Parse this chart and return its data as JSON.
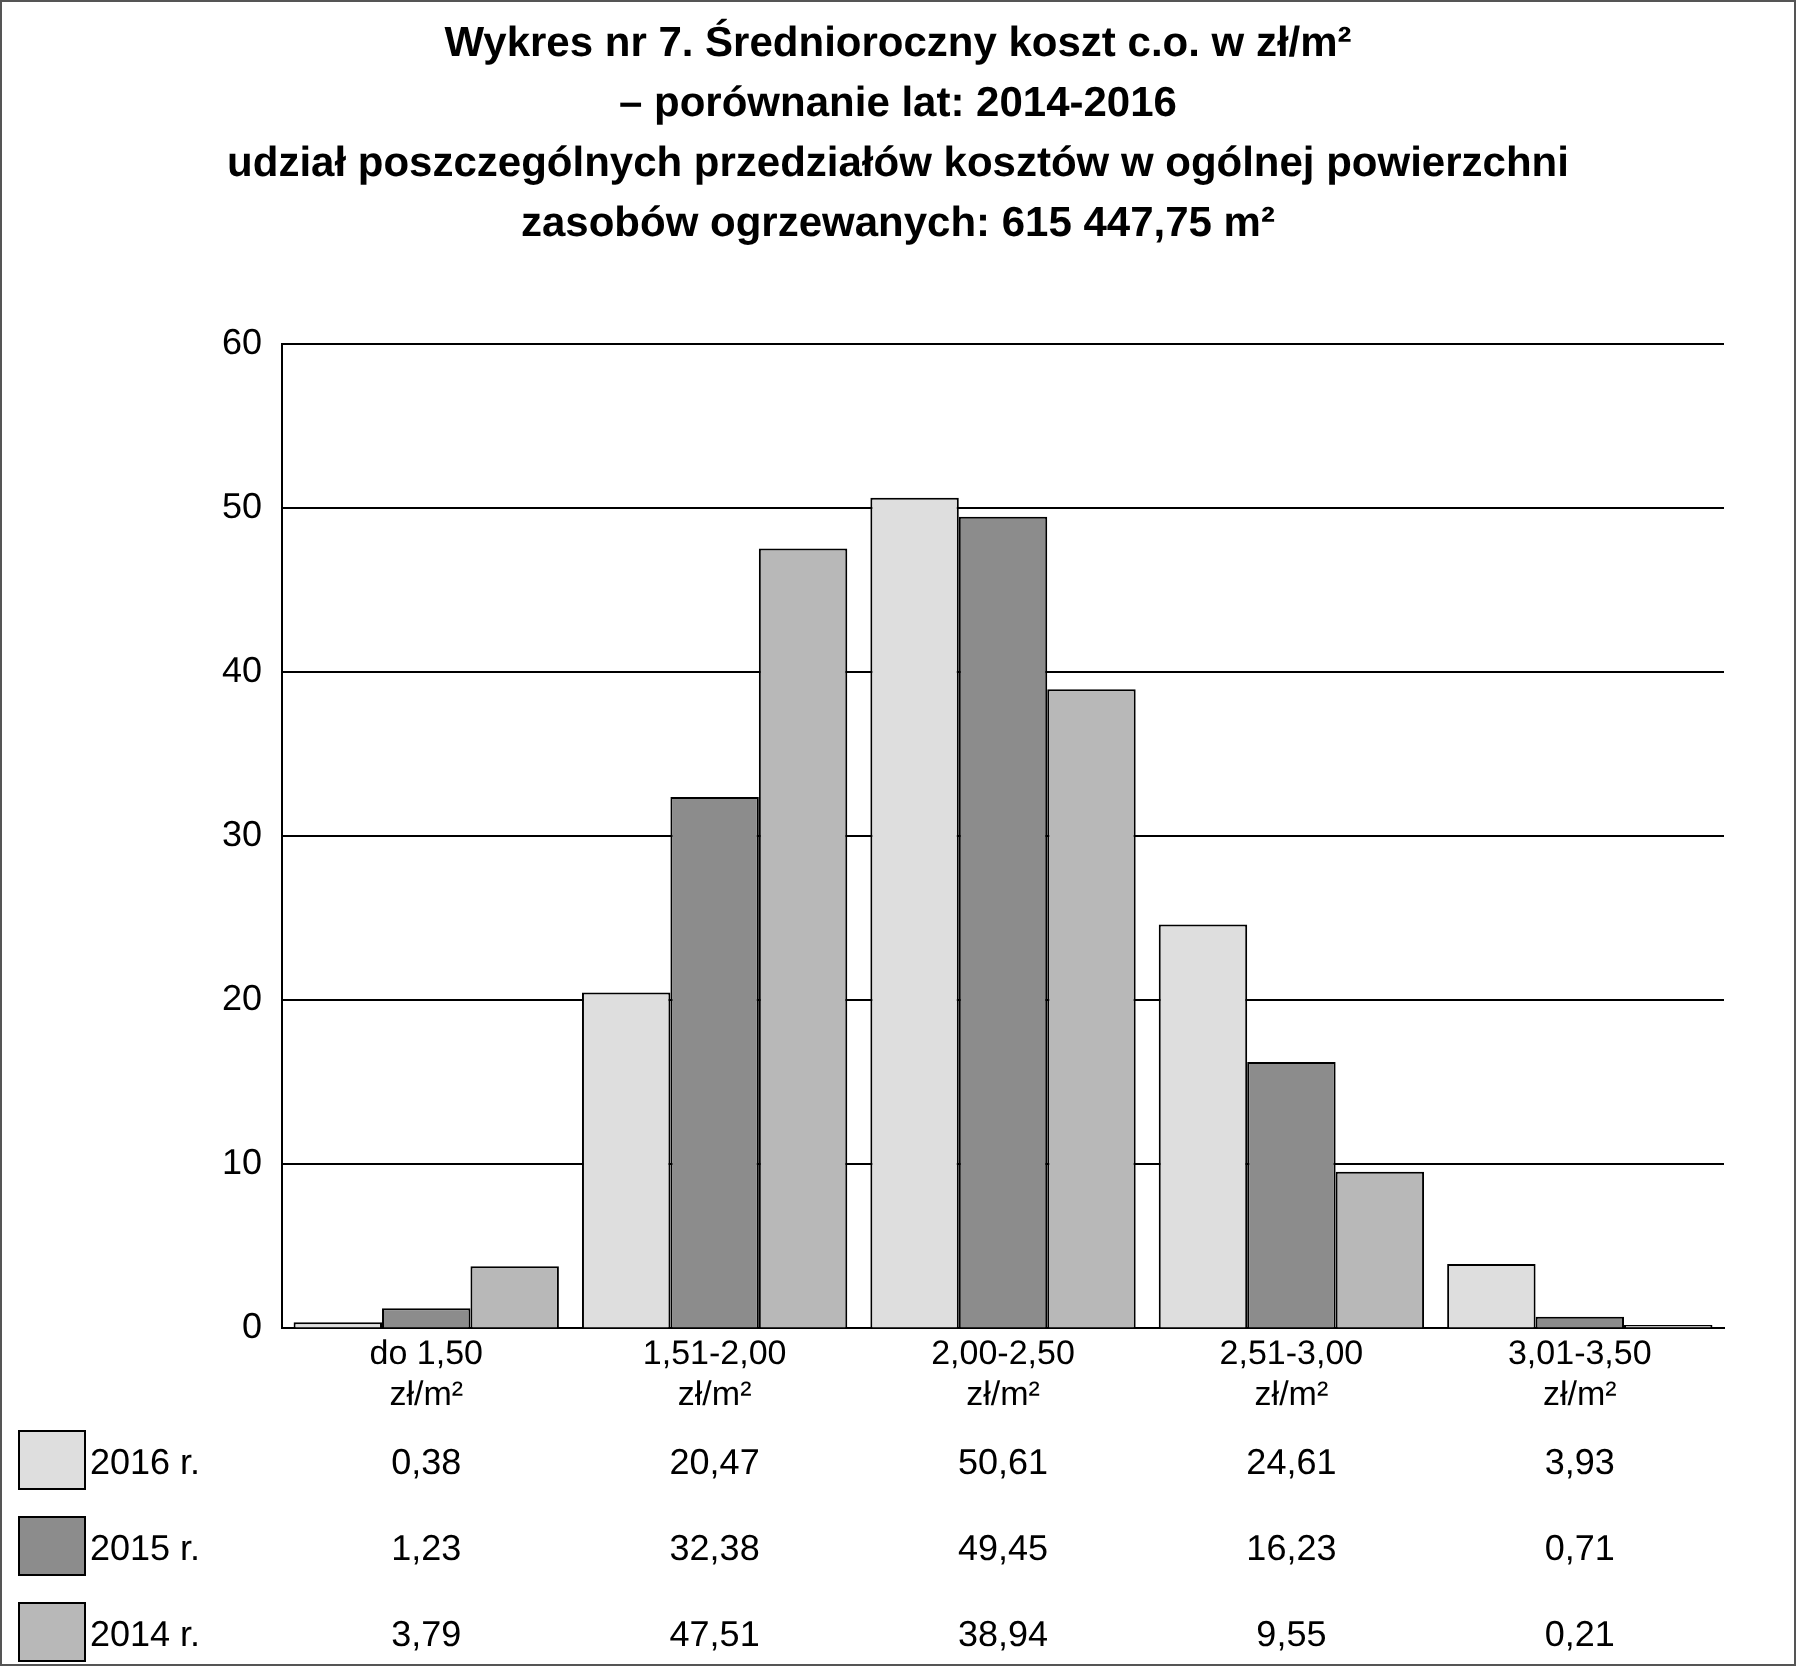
{
  "chart_data": {
    "type": "bar",
    "title": "Wykres nr 7. Średnioroczny koszt c.o. w zł/m²\n– porównanie lat: 2014-2016",
    "subtitle": "udział poszczególnych przedziałów kosztów w ogólnej powierzchni\nzasobów ogrzewanych: 615 447,75 m²",
    "categories": [
      "do 1,50 zł/m²",
      "1,51-2,00 zł/m²",
      "2,00-2,50 zł/m²",
      "2,51-3,00 zł/m²",
      "3,01-3,50 zł/m²"
    ],
    "series": [
      {
        "name": "2016 r.",
        "color": "#dedede",
        "values": [
          0.38,
          20.47,
          50.61,
          24.61,
          3.93
        ],
        "value_labels": [
          "0,38",
          "20,47",
          "50,61",
          "24,61",
          "3,93"
        ]
      },
      {
        "name": "2015 r.",
        "color": "#8c8c8c",
        "values": [
          1.23,
          32.38,
          49.45,
          16.23,
          0.71
        ],
        "value_labels": [
          "1,23",
          "32,38",
          "49,45",
          "16,23",
          "0,71"
        ]
      },
      {
        "name": "2014 r.",
        "color": "#b8b8b8",
        "values": [
          3.79,
          47.51,
          38.94,
          9.55,
          0.21
        ],
        "value_labels": [
          "3,79",
          "47,51",
          "38,94",
          "9,55",
          "0,21"
        ]
      }
    ],
    "ylim": [
      0,
      60
    ],
    "yticks": [
      0,
      10,
      20,
      30,
      40,
      50,
      60
    ],
    "grid": "y",
    "legend": "bottom"
  }
}
